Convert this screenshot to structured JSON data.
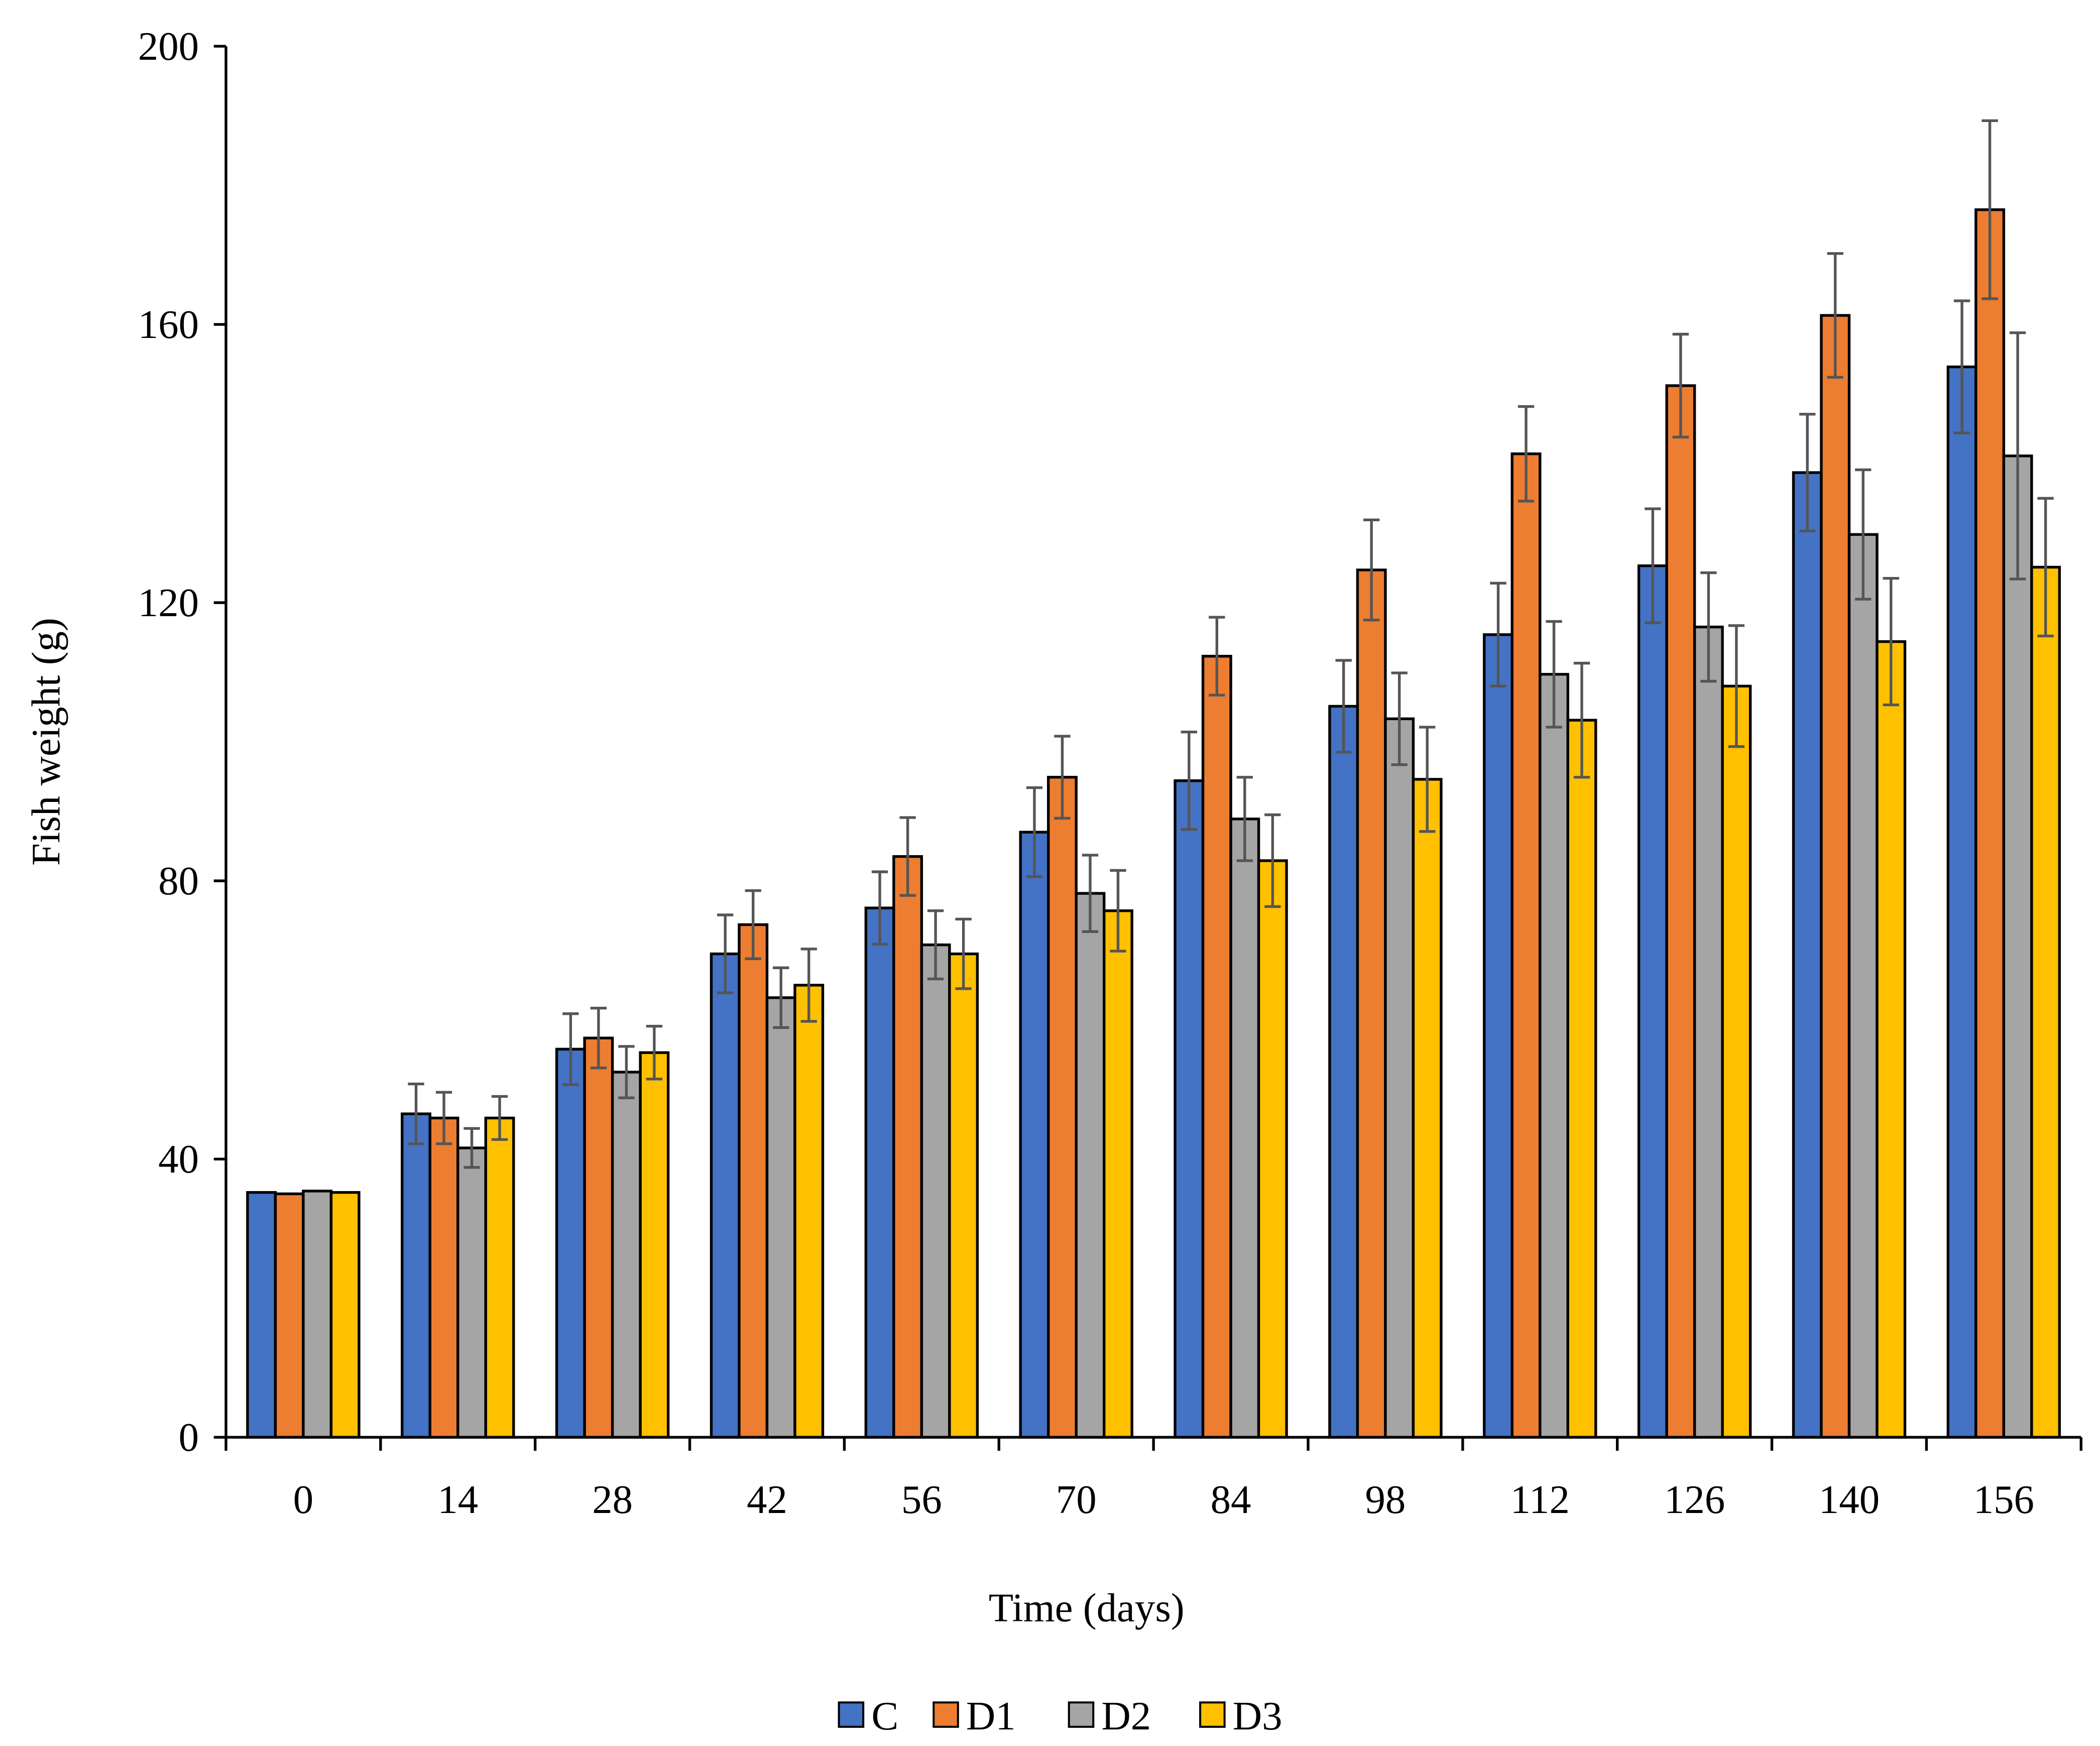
{
  "chart_data": {
    "type": "bar",
    "title": "",
    "xlabel": "Time (days)",
    "ylabel": "Fish weight (g)",
    "ylim": [
      0,
      200
    ],
    "yticks": [
      "0",
      "40",
      "80",
      "120",
      "160",
      "200"
    ],
    "categories": [
      "0",
      "14",
      "28",
      "42",
      "56",
      "70",
      "84",
      "98",
      "112",
      "126",
      "140",
      "156"
    ],
    "grid": false,
    "legend_position": "bottom",
    "series": [
      {
        "name": "C",
        "color": "#4472C4",
        "values": [
          35.2,
          46.5,
          55.8,
          69.5,
          76.1,
          87.0,
          94.4,
          105.1,
          115.4,
          125.3,
          138.7,
          153.9
        ],
        "errors": [
          0,
          4.3,
          5.1,
          5.6,
          5.2,
          6.4,
          7.0,
          6.6,
          7.4,
          8.2,
          8.4,
          9.5
        ]
      },
      {
        "name": "D1",
        "color": "#ED7D31",
        "values": [
          35.0,
          45.9,
          57.4,
          73.7,
          83.5,
          94.9,
          112.3,
          124.7,
          141.4,
          151.2,
          161.3,
          176.5
        ],
        "errors": [
          0,
          3.7,
          4.3,
          4.9,
          5.6,
          5.9,
          5.6,
          7.2,
          6.8,
          7.4,
          8.9,
          12.8
        ]
      },
      {
        "name": "D2",
        "color": "#A5A5A5",
        "values": [
          35.4,
          41.6,
          52.5,
          63.2,
          70.8,
          78.2,
          88.9,
          103.3,
          109.7,
          116.5,
          129.8,
          141.1
        ],
        "errors": [
          0,
          2.8,
          3.7,
          4.3,
          4.9,
          5.5,
          6.0,
          6.6,
          7.6,
          7.8,
          9.3,
          17.7
        ]
      },
      {
        "name": "D3",
        "color": "#FFC000",
        "values": [
          35.2,
          45.9,
          55.3,
          65.0,
          69.5,
          75.7,
          82.9,
          94.6,
          103.1,
          108.0,
          114.4,
          125.1
        ],
        "errors": [
          0,
          3.1,
          3.8,
          5.2,
          5.0,
          5.8,
          6.6,
          7.5,
          8.2,
          8.7,
          9.1,
          9.9
        ]
      }
    ]
  }
}
